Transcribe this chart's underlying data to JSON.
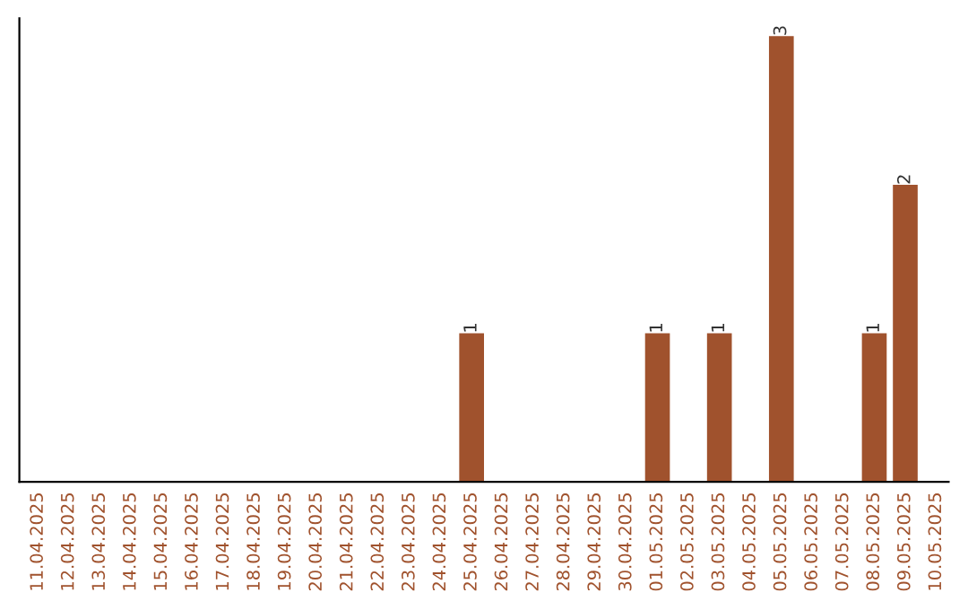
{
  "chart_data": {
    "type": "bar",
    "categories": [
      "11.04.2025",
      "12.04.2025",
      "13.04.2025",
      "14.04.2025",
      "15.04.2025",
      "16.04.2025",
      "17.04.2025",
      "18.04.2025",
      "19.04.2025",
      "20.04.2025",
      "21.04.2025",
      "22.04.2025",
      "23.04.2025",
      "24.04.2025",
      "25.04.2025",
      "26.04.2025",
      "27.04.2025",
      "28.04.2025",
      "29.04.2025",
      "30.04.2025",
      "01.05.2025",
      "02.05.2025",
      "03.05.2025",
      "04.05.2025",
      "05.05.2025",
      "06.05.2025",
      "07.05.2025",
      "08.05.2025",
      "09.05.2025",
      "10.05.2025"
    ],
    "values": [
      null,
      null,
      null,
      null,
      null,
      null,
      null,
      null,
      null,
      null,
      null,
      null,
      null,
      null,
      1,
      null,
      null,
      null,
      null,
      null,
      1,
      null,
      1,
      null,
      3,
      null,
      null,
      1,
      2,
      null
    ],
    "data_labels": true,
    "color": "#a0522d",
    "tick_labels": "x"
  }
}
